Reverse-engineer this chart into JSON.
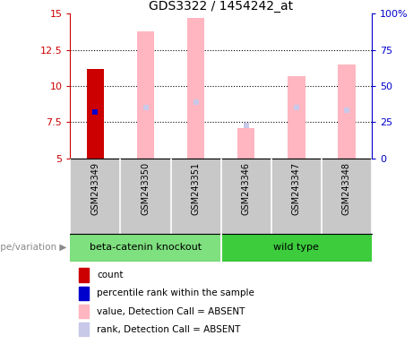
{
  "title": "GDS3322 / 1454242_at",
  "samples": [
    "GSM243349",
    "GSM243350",
    "GSM243351",
    "GSM243346",
    "GSM243347",
    "GSM243348"
  ],
  "groups": [
    "beta-catenin knockout",
    "beta-catenin knockout",
    "beta-catenin knockout",
    "wild type",
    "wild type",
    "wild type"
  ],
  "group_colors": {
    "beta-catenin knockout": "#7EE07E",
    "wild type": "#3CCC3C"
  },
  "ylim_left": [
    5,
    15
  ],
  "ylim_right": [
    0,
    100
  ],
  "yticks_left": [
    5,
    7.5,
    10,
    12.5,
    15
  ],
  "yticks_right": [
    0,
    25,
    50,
    75,
    100
  ],
  "ytick_labels_left": [
    "5",
    "7.5",
    "10",
    "12.5",
    "15"
  ],
  "ytick_labels_right": [
    "0",
    "25",
    "50",
    "75",
    "100%"
  ],
  "left_axis_color": "#CC0000",
  "right_axis_color": "#0000CC",
  "bar_width": 0.35,
  "pink_bars": {
    "values": [
      null,
      13.8,
      14.7,
      7.1,
      10.7,
      11.5
    ],
    "rank_markers": [
      null,
      8.5,
      8.9,
      7.25,
      8.5,
      8.3
    ]
  },
  "red_bar": {
    "sample_idx": 0,
    "value": 11.2
  },
  "blue_marker": {
    "sample_idx": 0,
    "value": 8.2
  },
  "legend_items": [
    {
      "color": "#CC0000",
      "label": "count"
    },
    {
      "color": "#0000CC",
      "label": "percentile rank within the sample"
    },
    {
      "color": "#FFB6C1",
      "label": "value, Detection Call = ABSENT"
    },
    {
      "color": "#C8C8E8",
      "label": "rank, Detection Call = ABSENT"
    }
  ],
  "genotype_label": "genotype/variation",
  "plot_bg_color": "#FFFFFF",
  "label_area_color": "#C8C8C8",
  "grid_color": "#000000"
}
